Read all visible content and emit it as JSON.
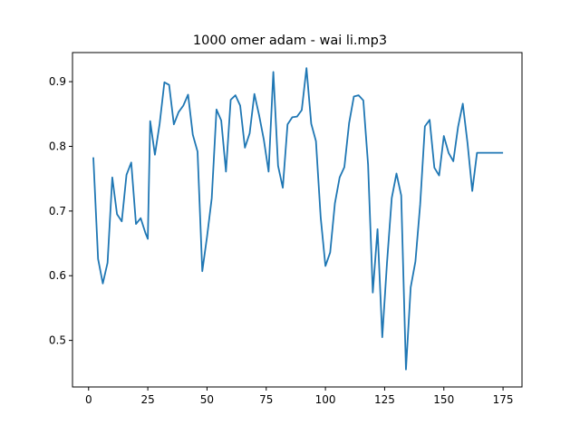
{
  "chart_data": {
    "type": "line",
    "title": "1000 omer adam - wai li.mp3",
    "xlabel": "",
    "ylabel": "",
    "xlim": [
      -6.8,
      183
    ],
    "ylim": [
      0.428,
      0.945
    ],
    "xticks": [
      0,
      25,
      50,
      75,
      100,
      125,
      150,
      175
    ],
    "yticks": [
      0.5,
      0.6,
      0.7,
      0.8,
      0.9
    ],
    "ytick_labels": [
      "0.5",
      "0.6",
      "0.7",
      "0.8",
      "0.9"
    ],
    "grid": false,
    "color": "#1f77b4",
    "x": [
      2,
      4,
      6,
      8,
      10,
      12,
      14,
      16,
      18,
      20,
      22,
      24,
      25,
      26,
      28,
      30,
      32,
      34,
      36,
      38,
      40,
      42,
      44,
      46,
      48,
      50,
      52,
      54,
      56,
      58,
      60,
      62,
      64,
      66,
      68,
      70,
      72,
      74,
      76,
      78,
      80,
      82,
      84,
      86,
      88,
      90,
      92,
      94,
      96,
      98,
      100,
      102,
      104,
      106,
      108,
      110,
      112,
      114,
      116,
      118,
      120,
      122,
      124,
      126,
      128,
      130,
      132,
      134,
      136,
      138,
      140,
      142,
      144,
      146,
      148,
      150,
      152,
      154,
      156,
      158,
      160,
      162,
      164,
      166,
      168,
      170,
      172,
      174,
      175
    ],
    "y": [
      0.783,
      0.626,
      0.588,
      0.62,
      0.752,
      0.695,
      0.684,
      0.756,
      0.775,
      0.68,
      0.689,
      0.666,
      0.657,
      0.839,
      0.787,
      0.835,
      0.899,
      0.895,
      0.834,
      0.853,
      0.863,
      0.88,
      0.818,
      0.792,
      0.607,
      0.66,
      0.72,
      0.857,
      0.84,
      0.761,
      0.872,
      0.879,
      0.863,
      0.798,
      0.82,
      0.881,
      0.848,
      0.81,
      0.761,
      0.915,
      0.77,
      0.736,
      0.834,
      0.845,
      0.846,
      0.856,
      0.921,
      0.835,
      0.808,
      0.69,
      0.615,
      0.636,
      0.712,
      0.752,
      0.768,
      0.836,
      0.877,
      0.879,
      0.871,
      0.772,
      0.574,
      0.672,
      0.505,
      0.62,
      0.72,
      0.758,
      0.724,
      0.455,
      0.582,
      0.622,
      0.71,
      0.831,
      0.841,
      0.767,
      0.755,
      0.816,
      0.79,
      0.777,
      0.83,
      0.866,
      0.805,
      0.731,
      0.79,
      0.79,
      0.79,
      0.79,
      0.79,
      0.79,
      0.79
    ]
  }
}
